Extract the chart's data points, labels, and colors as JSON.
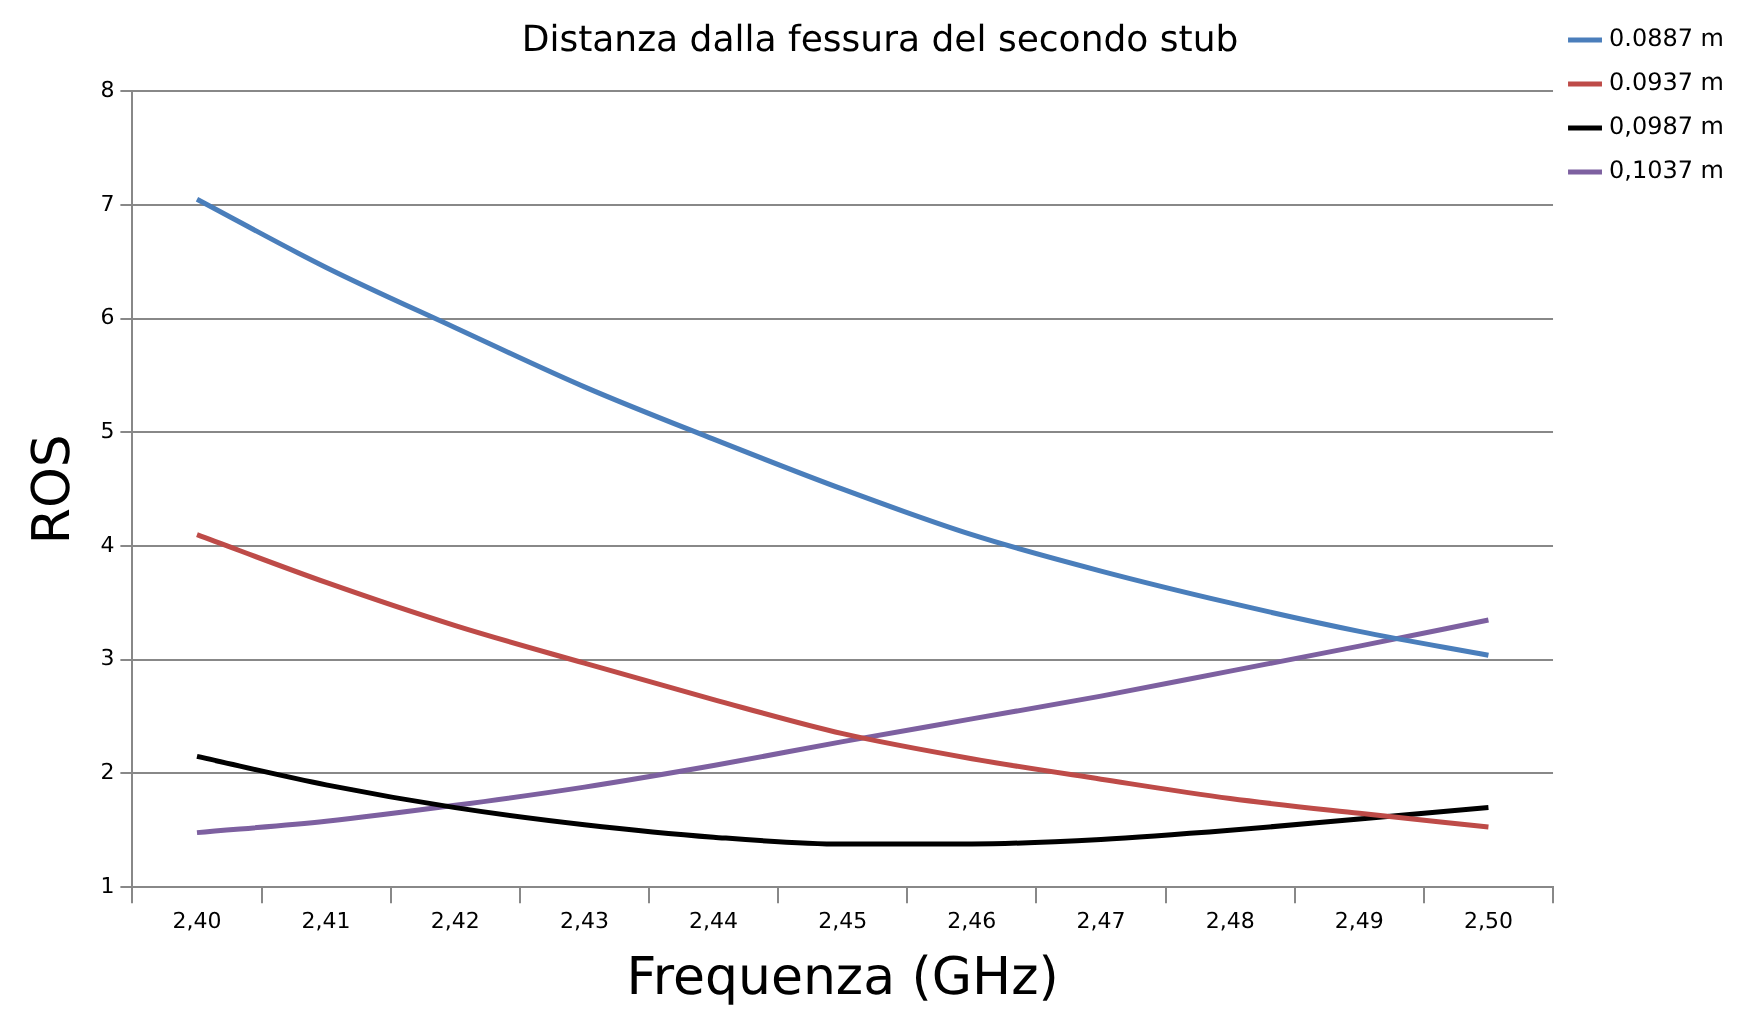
{
  "chart_data": {
    "type": "line",
    "title": "Distanza dalla fessura del secondo stub",
    "xlabel": "Frequenza (GHz)",
    "ylabel": "ROS",
    "categories": [
      "2,40",
      "2,41",
      "2,42",
      "2,43",
      "2,44",
      "2,45",
      "2,46",
      "2,47",
      "2,48",
      "2,49",
      "2,50"
    ],
    "series": [
      {
        "name": "0.0887 m",
        "color": "#4a7ebb",
        "values": [
          7.05,
          6.45,
          5.92,
          5.4,
          4.94,
          4.5,
          4.1,
          3.78,
          3.5,
          3.25,
          3.04
        ]
      },
      {
        "name": "0.0937 m",
        "color": "#be4b48",
        "values": [
          4.1,
          3.68,
          3.3,
          2.97,
          2.65,
          2.35,
          2.13,
          1.95,
          1.78,
          1.65,
          1.53
        ]
      },
      {
        "name": "0,0987 m",
        "color": "#000000",
        "values": [
          2.15,
          1.9,
          1.7,
          1.55,
          1.44,
          1.38,
          1.38,
          1.42,
          1.5,
          1.6,
          1.7
        ]
      },
      {
        "name": "0,1037 m",
        "color": "#7d60a0",
        "values": [
          1.48,
          1.58,
          1.72,
          1.88,
          2.07,
          2.28,
          2.48,
          2.68,
          2.9,
          3.12,
          3.35
        ]
      }
    ],
    "ylim": [
      1,
      8
    ],
    "yticks": [
      1,
      2,
      3,
      4,
      5,
      6,
      7,
      8
    ],
    "grid": "y",
    "legend": "top right",
    "marker": "none",
    "line_style": "solid"
  }
}
